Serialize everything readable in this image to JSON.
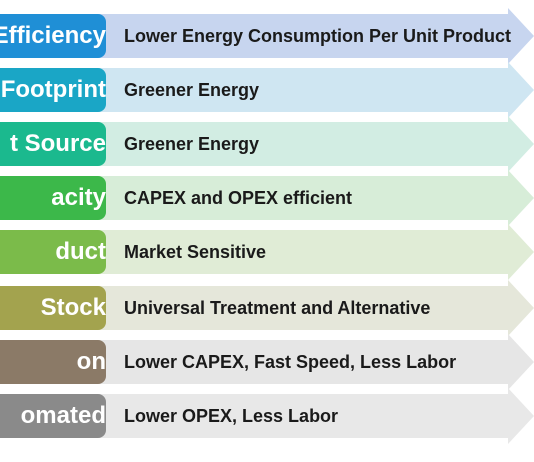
{
  "rows": [
    {
      "label": "Efficiency",
      "desc": "Lower Energy Consumption Per Unit Product",
      "box_color": "#1f8fd6",
      "arrow_color": "#c7d5ef"
    },
    {
      "label": "Footprint",
      "desc": "Greener Energy",
      "box_color": "#1aa6c6",
      "arrow_color": "#cfe6f2"
    },
    {
      "label": "t Source",
      "desc": "Greener Energy",
      "box_color": "#1bb98e",
      "arrow_color": "#d2ede3"
    },
    {
      "label": "acity",
      "desc": "CAPEX and OPEX efficient",
      "box_color": "#3cb84a",
      "arrow_color": "#d7edd8"
    },
    {
      "label": "duct",
      "desc": "Market Sensitive",
      "box_color": "#7bbb4a",
      "arrow_color": "#e0ecd6"
    },
    {
      "label": "Stock",
      "desc": "Universal Treatment and Alternative",
      "box_color": "#a3a34e",
      "arrow_color": "#e5e7da"
    },
    {
      "label": "on",
      "desc": "Lower CAPEX, Fast Speed, Less Labor",
      "box_color": "#8b7a67",
      "arrow_color": "#e6e6e6"
    },
    {
      "label": "omated",
      "desc": "Lower OPEX, Less Labor",
      "box_color": "#8a8a8a",
      "arrow_color": "#e8e8e8"
    }
  ]
}
